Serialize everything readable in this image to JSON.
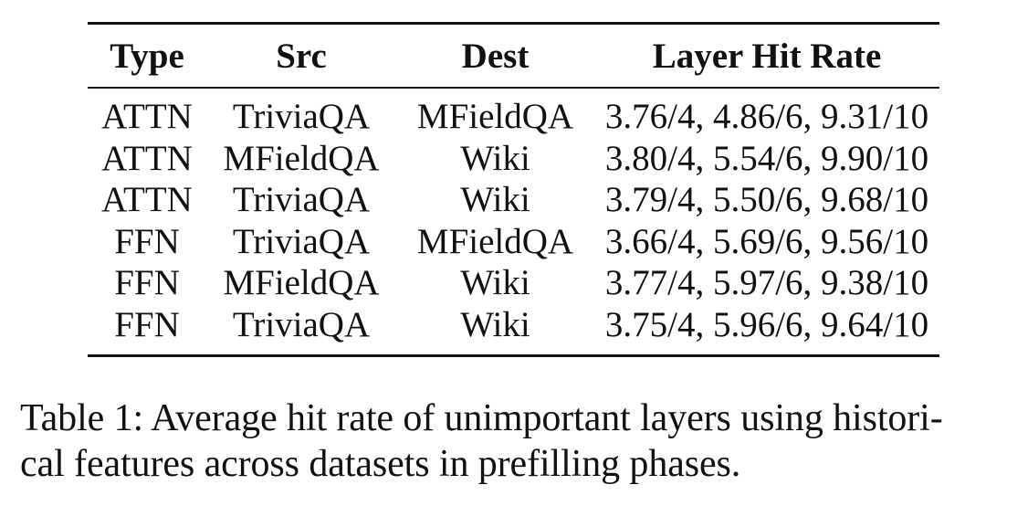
{
  "table": {
    "headers": [
      "Type",
      "Src",
      "Dest",
      "Layer Hit Rate"
    ],
    "rows": [
      [
        "ATTN",
        "TriviaQA",
        "MFieldQA",
        "3.76/4, 4.86/6, 9.31/10"
      ],
      [
        "ATTN",
        "MFieldQA",
        "Wiki",
        "3.80/4, 5.54/6, 9.90/10"
      ],
      [
        "ATTN",
        "TriviaQA",
        "Wiki",
        "3.79/4, 5.50/6, 9.68/10"
      ],
      [
        "FFN",
        "TriviaQA",
        "MFieldQA",
        "3.66/4, 5.69/6, 9.56/10"
      ],
      [
        "FFN",
        "MFieldQA",
        "Wiki",
        "3.77/4, 5.97/6, 9.38/10"
      ],
      [
        "FFN",
        "TriviaQA",
        "Wiki",
        "3.75/4, 5.96/6, 9.64/10"
      ]
    ]
  },
  "caption": {
    "line1": "Table 1: Average hit rate of unimportant layers using histori-",
    "line2": "cal features across datasets in prefilling phases."
  }
}
